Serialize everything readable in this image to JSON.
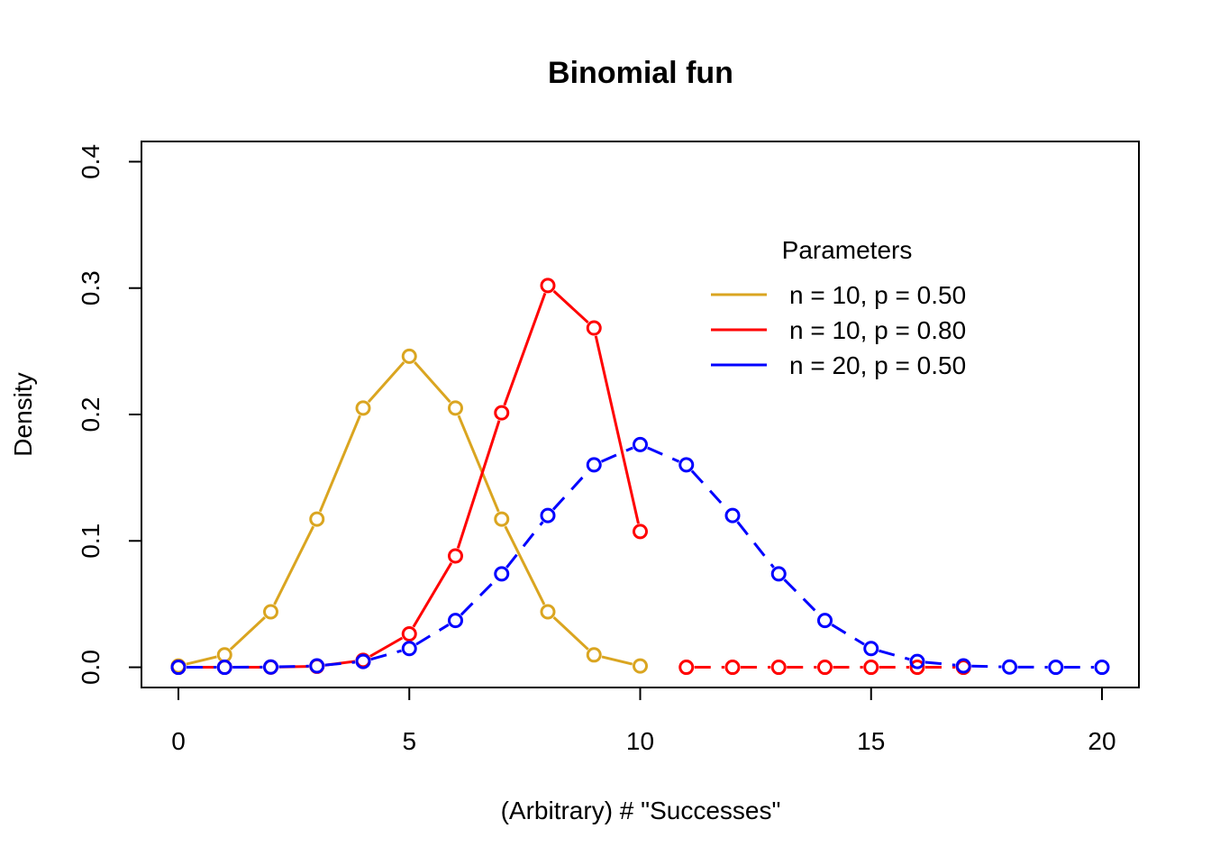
{
  "chart_data": {
    "type": "line",
    "title": "Binomial fun",
    "xlabel": "(Arbitrary) # \"Successes\"",
    "ylabel": "Density",
    "xlim": [
      -0.8,
      20.8
    ],
    "ylim": [
      -0.016,
      0.416
    ],
    "x_ticks": [
      0,
      5,
      10,
      15,
      20
    ],
    "y_ticks": [
      0.0,
      0.1,
      0.2,
      0.3,
      0.4
    ],
    "y_tick_labels": [
      "0.0",
      "0.1",
      "0.2",
      "0.3",
      "0.4"
    ],
    "grid": false,
    "legend": {
      "title": "Parameters",
      "placement": "top-right"
    },
    "series": [
      {
        "name": "n = 10, p = 0.50",
        "color": "#DAA520",
        "style": "solid",
        "x": [
          0,
          1,
          2,
          3,
          4,
          5,
          6,
          7,
          8,
          9,
          10
        ],
        "values": [
          0.001,
          0.0098,
          0.0439,
          0.1172,
          0.2051,
          0.2461,
          0.2051,
          0.1172,
          0.0439,
          0.0098,
          0.001
        ]
      },
      {
        "name": "n = 10, p = 0.80",
        "color": "#FF0000",
        "style": "solid",
        "x": [
          0,
          1,
          2,
          3,
          4,
          5,
          6,
          7,
          8,
          9,
          10
        ],
        "values": [
          0.0,
          0.0,
          0.0001,
          0.0008,
          0.0055,
          0.0264,
          0.0881,
          0.2013,
          0.302,
          0.2684,
          0.1074
        ]
      },
      {
        "name": "",
        "color": "#FF0000",
        "style": "dashed",
        "x": [
          11,
          12,
          13,
          14,
          15,
          16,
          17
        ],
        "values": [
          0,
          0,
          0,
          0,
          0,
          0,
          0
        ]
      },
      {
        "name": "n = 20, p = 0.50",
        "color": "#0000FF",
        "style": "dashed",
        "x": [
          0,
          1,
          2,
          3,
          4,
          5,
          6,
          7,
          8,
          9,
          10,
          11,
          12,
          13,
          14,
          15,
          16,
          17,
          18,
          19,
          20
        ],
        "values": [
          0.0,
          0.0,
          0.0002,
          0.0011,
          0.0046,
          0.0148,
          0.037,
          0.0739,
          0.1201,
          0.1602,
          0.1762,
          0.1602,
          0.1201,
          0.0739,
          0.037,
          0.0148,
          0.0046,
          0.0011,
          0.0002,
          0.0,
          0.0
        ]
      }
    ]
  }
}
